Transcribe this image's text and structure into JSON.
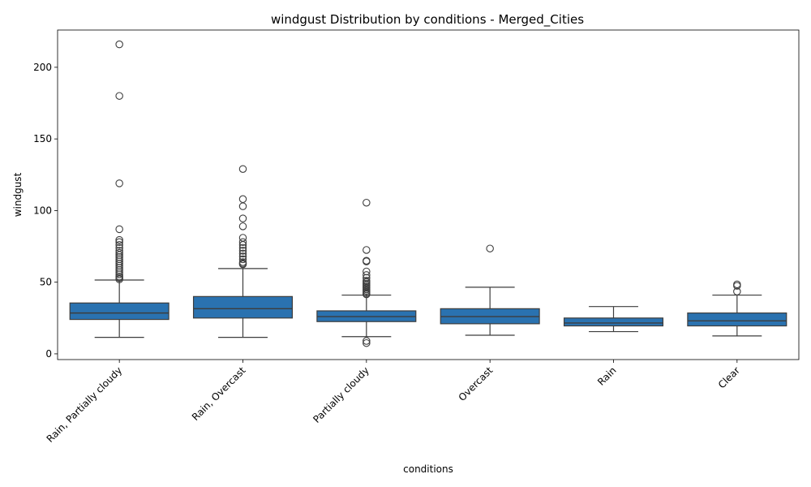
{
  "chart_data": {
    "type": "box",
    "title": "windgust Distribution by conditions - Merged_Cities",
    "xlabel": "conditions",
    "ylabel": "windgust",
    "ylim": [
      -4,
      226
    ],
    "yticks": [
      0,
      50,
      100,
      150,
      200
    ],
    "box_color": "#2a72b0",
    "edge_color": "#3d3d3d",
    "grid": false,
    "categories": [
      "Rain, Partially cloudy",
      "Rain, Overcast",
      "Partially cloudy",
      "Overcast",
      "Rain",
      "Clear"
    ],
    "boxes": [
      {
        "whislo": 11.5,
        "q1": 24,
        "med": 28.5,
        "q3": 35.5,
        "whishi": 51.5,
        "fliers": [
          216,
          180,
          119,
          87,
          79.5,
          78,
          76,
          74,
          72,
          70.5,
          69,
          67.5,
          66,
          64.5,
          63,
          61.5,
          60,
          58.5,
          57,
          55.5,
          54,
          53,
          52
        ]
      },
      {
        "whislo": 11.5,
        "q1": 25,
        "med": 31.5,
        "q3": 40,
        "whishi": 59.5,
        "fliers": [
          129,
          108,
          103,
          94.5,
          89,
          81,
          78,
          76,
          74,
          72,
          70,
          68,
          66,
          64,
          63,
          62.5
        ]
      },
      {
        "whislo": 12,
        "q1": 22.5,
        "med": 26,
        "q3": 30,
        "whishi": 41,
        "fliers": [
          105.5,
          72.5,
          65,
          64.5,
          57.5,
          55,
          53,
          51,
          50,
          49,
          48,
          47,
          46,
          45,
          44,
          43,
          42,
          41.5,
          9,
          7.5
        ]
      },
      {
        "whislo": 13,
        "q1": 21,
        "med": 26,
        "q3": 31.5,
        "whishi": 46.5,
        "fliers": [
          73.5
        ]
      },
      {
        "whislo": 15.5,
        "q1": 19.5,
        "med": 21.5,
        "q3": 25,
        "whishi": 33,
        "fliers": []
      },
      {
        "whislo": 12.5,
        "q1": 19.5,
        "med": 23,
        "q3": 28.5,
        "whishi": 41,
        "fliers": [
          48.5,
          47.5,
          43.5
        ]
      }
    ]
  }
}
